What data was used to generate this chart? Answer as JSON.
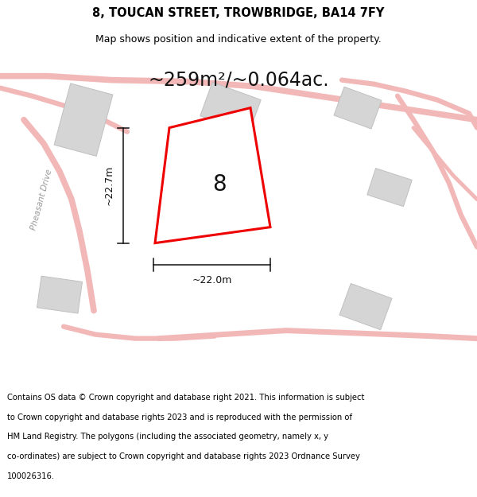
{
  "title_line1": "8, TOUCAN STREET, TROWBRIDGE, BA14 7FY",
  "title_line2": "Map shows position and indicative extent of the property.",
  "area_label": "~259m²/~0.064ac.",
  "number_label": "8",
  "dim_horizontal": "~22.0m",
  "dim_vertical": "~22.7m",
  "footer_text": "Contains OS data © Crown copyright and database right 2021. This information is subject to Crown copyright and database rights 2023 and is reproduced with the permission of HM Land Registry. The polygons (including the associated geometry, namely x, y co-ordinates) are subject to Crown copyright and database rights 2023 Ordnance Survey 100026316.",
  "bg_color": "#f5f5f5",
  "road_color": "#f2b8b8",
  "building_color": "#d5d5d5",
  "building_edge": "#c0c0c0",
  "plot_color": "#ee0000",
  "dim_line_color": "#111111",
  "title_fontsize": 10.5,
  "subtitle_fontsize": 9,
  "area_fontsize": 17,
  "number_fontsize": 20,
  "dim_fontsize": 9,
  "footer_fontsize": 7.2,
  "road_lw": 4.5,
  "pheasant_drive_label": "Pheasant Drive"
}
